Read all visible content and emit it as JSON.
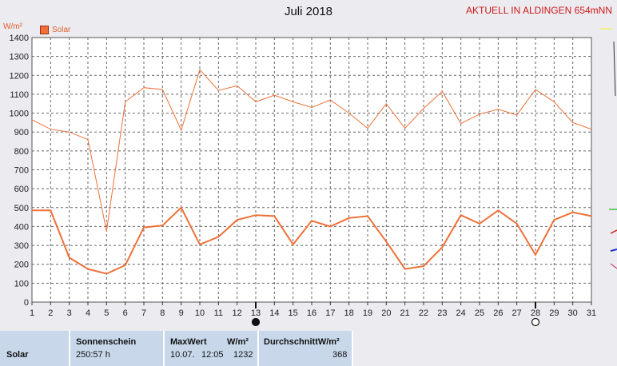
{
  "title": "Juli 2018",
  "station": "AKTUELL IN ALDINGEN 654mNN",
  "unit": "W/m²",
  "chart_data": {
    "type": "line",
    "title": "Juli 2018",
    "ylabel": "W/m²",
    "ylim": [
      0,
      1400
    ],
    "yticks": [
      0,
      100,
      200,
      300,
      400,
      500,
      600,
      700,
      800,
      900,
      1000,
      1100,
      1200,
      1300,
      1400
    ],
    "x": [
      1,
      2,
      3,
      4,
      5,
      6,
      7,
      8,
      9,
      10,
      11,
      12,
      13,
      14,
      15,
      16,
      17,
      18,
      19,
      20,
      21,
      22,
      23,
      24,
      25,
      26,
      27,
      28,
      29,
      30,
      31
    ],
    "legend": [
      "Solar"
    ],
    "grid": true,
    "series": [
      {
        "name": "Solar",
        "role": "max",
        "color": "#f07038",
        "values": [
          965,
          915,
          900,
          860,
          375,
          1060,
          1135,
          1125,
          910,
          1230,
          1120,
          1145,
          1060,
          1095,
          1060,
          1030,
          1070,
          1000,
          920,
          1050,
          920,
          1025,
          1115,
          945,
          995,
          1020,
          990,
          1125,
          1060,
          950,
          915
        ]
      },
      {
        "name": "Solar",
        "role": "average",
        "color": "#f07038",
        "values": [
          485,
          485,
          235,
          175,
          150,
          195,
          395,
          405,
          500,
          305,
          345,
          435,
          460,
          455,
          305,
          430,
          400,
          445,
          455,
          320,
          175,
          190,
          290,
          460,
          415,
          485,
          415,
          250,
          435,
          475,
          455
        ]
      }
    ],
    "moon_markers": [
      {
        "day": 13,
        "phase": "new-moon"
      },
      {
        "day": 28,
        "phase": "full-moon"
      }
    ]
  },
  "panel": {
    "row_label": "Solar",
    "sonnenschein": {
      "header": "Sonnenschein",
      "value": "250:57 h"
    },
    "maxwert": {
      "header": "MaxWert",
      "unit": "W/m²",
      "date": "10.07.",
      "time": "12:05",
      "value": "1232"
    },
    "durchschnitt": {
      "header": "DurchschnittW/m²",
      "value": "368"
    }
  }
}
